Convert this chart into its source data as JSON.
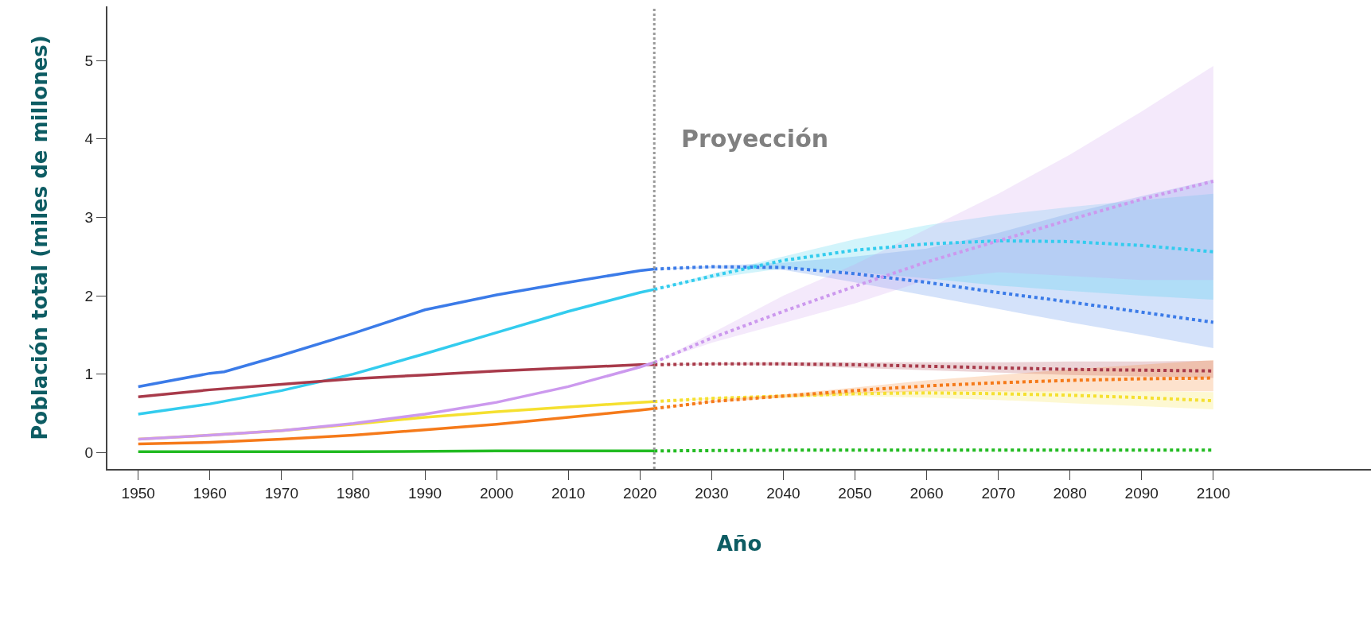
{
  "chart_data": {
    "type": "line",
    "xlabel": "Año",
    "ylabel": "Población total (miles de millones)",
    "xlim": [
      1945.7,
      2122
    ],
    "ylim": [
      -0.21,
      5.69
    ],
    "xticks": [
      1950,
      1960,
      1970,
      1980,
      1990,
      2000,
      2010,
      2020,
      2030,
      2040,
      2050,
      2060,
      2070,
      2080,
      2090,
      2100
    ],
    "yticks": [
      0,
      1,
      2,
      3,
      4,
      5
    ],
    "marker": "none",
    "ref_lines": [
      {
        "axis": "x",
        "value": 2022,
        "label": "Proyección",
        "color": "#999999",
        "line_style": "dotted"
      }
    ],
    "series": [
      {
        "color": "#3b7be8",
        "line_style": "solid",
        "x": [
          1950,
          1960,
          1962,
          1970,
          1980,
          1990,
          2000,
          2010,
          2020,
          2022
        ],
        "values": [
          0.84,
          1.01,
          1.03,
          1.24,
          1.52,
          1.82,
          2.01,
          2.17,
          2.32,
          2.34
        ]
      },
      {
        "color": "#33ccee",
        "line_style": "solid",
        "x": [
          1950,
          1960,
          1970,
          1980,
          1990,
          2000,
          2010,
          2020,
          2022
        ],
        "values": [
          0.49,
          0.62,
          0.79,
          1.0,
          1.26,
          1.53,
          1.8,
          2.04,
          2.08
        ]
      },
      {
        "color": "#a83a4a",
        "line_style": "solid",
        "x": [
          1950,
          1960,
          1970,
          1980,
          1990,
          2000,
          2010,
          2020,
          2022
        ],
        "values": [
          0.71,
          0.8,
          0.87,
          0.94,
          0.99,
          1.04,
          1.08,
          1.12,
          1.12
        ]
      },
      {
        "color": "#f5e030",
        "line_style": "solid",
        "x": [
          1950,
          1960,
          1970,
          1980,
          1990,
          2000,
          2010,
          2020,
          2022
        ],
        "values": [
          0.17,
          0.22,
          0.28,
          0.36,
          0.45,
          0.52,
          0.58,
          0.64,
          0.65
        ]
      },
      {
        "color": "#cc99ee",
        "line_style": "solid",
        "x": [
          1950,
          1960,
          1970,
          1980,
          1990,
          2000,
          2010,
          2020,
          2022
        ],
        "values": [
          0.17,
          0.22,
          0.28,
          0.37,
          0.49,
          0.64,
          0.84,
          1.09,
          1.15
        ]
      },
      {
        "color": "#f57a1a",
        "line_style": "solid",
        "x": [
          1950,
          1960,
          1970,
          1980,
          1990,
          2000,
          2010,
          2020,
          2022
        ],
        "values": [
          0.11,
          0.13,
          0.17,
          0.22,
          0.29,
          0.36,
          0.45,
          0.54,
          0.56
        ]
      },
      {
        "color": "#22bb22",
        "line_style": "solid",
        "x": [
          1950,
          1980,
          2000,
          2022
        ],
        "values": [
          0.01,
          0.01,
          0.02,
          0.02
        ]
      },
      {
        "color": "#3b7be8",
        "line_style": "dotted",
        "x": [
          2022,
          2030,
          2040,
          2050,
          2060,
          2070,
          2080,
          2090,
          2100
        ],
        "values": [
          2.34,
          2.37,
          2.36,
          2.28,
          2.17,
          2.04,
          1.92,
          1.79,
          1.66
        ],
        "lower": [
          2.34,
          2.35,
          2.33,
          2.17,
          2.0,
          1.83,
          1.66,
          1.5,
          1.33
        ],
        "upper": [
          2.34,
          2.38,
          2.42,
          2.5,
          2.6,
          2.8,
          3.05,
          3.27,
          3.48
        ]
      },
      {
        "color": "#33ccee",
        "line_style": "dotted",
        "x": [
          2022,
          2030,
          2040,
          2050,
          2060,
          2070,
          2080,
          2090,
          2100
        ],
        "values": [
          2.08,
          2.25,
          2.45,
          2.58,
          2.66,
          2.7,
          2.69,
          2.64,
          2.56
        ],
        "lower": [
          2.08,
          2.22,
          2.35,
          2.3,
          2.22,
          2.13,
          2.06,
          2.0,
          1.95
        ],
        "upper": [
          2.08,
          2.28,
          2.5,
          2.72,
          2.9,
          3.03,
          3.13,
          3.22,
          3.3
        ]
      },
      {
        "color": "#a83a4a",
        "line_style": "dotted",
        "x": [
          2022,
          2030,
          2040,
          2050,
          2060,
          2070,
          2080,
          2090,
          2100
        ],
        "values": [
          1.12,
          1.13,
          1.13,
          1.12,
          1.1,
          1.08,
          1.06,
          1.05,
          1.04
        ],
        "lower": [
          1.12,
          1.12,
          1.11,
          1.08,
          1.05,
          1.02,
          0.99,
          0.97,
          0.95
        ],
        "upper": [
          1.12,
          1.14,
          1.15,
          1.15,
          1.15,
          1.15,
          1.16,
          1.16,
          1.17
        ]
      },
      {
        "color": "#cc99ee",
        "line_style": "dotted",
        "x": [
          2022,
          2030,
          2040,
          2050,
          2060,
          2070,
          2080,
          2090,
          2100
        ],
        "values": [
          1.15,
          1.46,
          1.8,
          2.12,
          2.43,
          2.7,
          2.97,
          3.23,
          3.46
        ],
        "lower": [
          1.15,
          1.4,
          1.65,
          1.9,
          2.2,
          2.3,
          2.25,
          2.2,
          2.2
        ],
        "upper": [
          1.15,
          1.52,
          2.0,
          2.4,
          2.85,
          3.3,
          3.8,
          4.35,
          4.93
        ]
      },
      {
        "color": "#f5e030",
        "line_style": "dotted",
        "x": [
          2022,
          2030,
          2040,
          2050,
          2060,
          2070,
          2080,
          2090,
          2100
        ],
        "values": [
          0.65,
          0.69,
          0.72,
          0.75,
          0.76,
          0.75,
          0.73,
          0.7,
          0.66
        ],
        "lower": [
          0.65,
          0.68,
          0.7,
          0.72,
          0.7,
          0.67,
          0.63,
          0.59,
          0.55
        ],
        "upper": [
          0.65,
          0.7,
          0.74,
          0.77,
          0.79,
          0.79,
          0.78,
          0.78,
          0.77
        ]
      },
      {
        "color": "#f57a1a",
        "line_style": "dotted",
        "x": [
          2022,
          2030,
          2040,
          2050,
          2060,
          2070,
          2080,
          2090,
          2100
        ],
        "values": [
          0.56,
          0.65,
          0.72,
          0.79,
          0.85,
          0.89,
          0.92,
          0.94,
          0.95
        ],
        "lower": [
          0.56,
          0.64,
          0.7,
          0.75,
          0.78,
          0.78,
          0.78,
          0.78,
          0.78
        ],
        "upper": [
          0.56,
          0.66,
          0.74,
          0.83,
          0.92,
          0.99,
          1.06,
          1.12,
          1.18
        ]
      },
      {
        "color": "#22bb22",
        "line_style": "dotted",
        "x": [
          2022,
          2040,
          2060,
          2080,
          2100
        ],
        "values": [
          0.02,
          0.03,
          0.03,
          0.03,
          0.03
        ]
      }
    ]
  }
}
